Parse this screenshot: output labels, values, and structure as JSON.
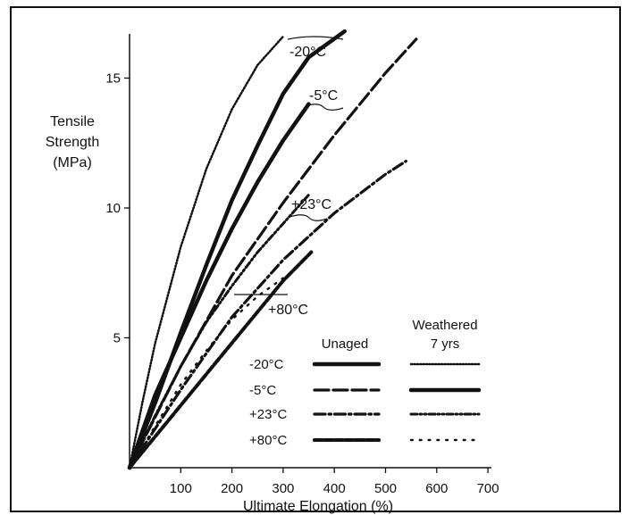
{
  "chart_data": {
    "type": "line",
    "xlabel": "Ultimate Elongation (%)",
    "ylabel_lines": [
      "Tensile",
      "Strength",
      "(MPa)"
    ],
    "xlim": [
      0,
      700
    ],
    "ylim": [
      0,
      17
    ],
    "xticks": [
      100,
      200,
      300,
      400,
      500,
      600,
      700
    ],
    "yticks": [
      5,
      10,
      15
    ],
    "grid": false,
    "legend_headers": {
      "unaged": "Unaged",
      "weathered_line1": "Weathered",
      "weathered_line2": "7 yrs"
    },
    "legend_rows": [
      "-20°C",
      "-5°C",
      "+23°C",
      "+80°C"
    ],
    "annotations": [
      {
        "text": "-20°C",
        "x": 350,
        "y": 16.5
      },
      {
        "text": "-5°C",
        "x": 340,
        "y": 14.3
      },
      {
        "text": "+23°C",
        "x": 355,
        "y": 9.5
      },
      {
        "text": "+80°C",
        "x": 330,
        "y": 6.0
      }
    ],
    "series": [
      {
        "temperature": "-20°C",
        "condition": "Unaged",
        "style": "solid",
        "points": [
          [
            0,
            0
          ],
          [
            50,
            2.5
          ],
          [
            100,
            5.2
          ],
          [
            150,
            7.8
          ],
          [
            200,
            10.3
          ],
          [
            250,
            12.4
          ],
          [
            300,
            14.4
          ],
          [
            350,
            15.8
          ],
          [
            420,
            16.8
          ]
        ]
      },
      {
        "temperature": "-20°C",
        "condition": "Weathered 7 yrs",
        "style": "dotted",
        "points": [
          [
            0,
            0
          ],
          [
            25,
            2.5
          ],
          [
            50,
            4.8
          ],
          [
            100,
            8.5
          ],
          [
            150,
            11.5
          ],
          [
            200,
            13.8
          ],
          [
            250,
            15.5
          ],
          [
            300,
            16.6
          ]
        ]
      },
      {
        "temperature": "-5°C",
        "condition": "Unaged",
        "style": "longdash",
        "points": [
          [
            0,
            0
          ],
          [
            100,
            3.9
          ],
          [
            200,
            7.4
          ],
          [
            300,
            10.2
          ],
          [
            400,
            12.8
          ],
          [
            500,
            15.2
          ],
          [
            560,
            16.5
          ]
        ]
      },
      {
        "temperature": "-5°C",
        "condition": "Weathered 7 yrs",
        "style": "solid",
        "points": [
          [
            0,
            0
          ],
          [
            50,
            2.8
          ],
          [
            100,
            5.0
          ],
          [
            150,
            7.2
          ],
          [
            200,
            9.2
          ],
          [
            250,
            11.0
          ],
          [
            300,
            12.6
          ],
          [
            350,
            14.0
          ]
        ]
      },
      {
        "temperature": "+23°C",
        "condition": "Unaged",
        "style": "dashdot",
        "points": [
          [
            0,
            0
          ],
          [
            100,
            3.0
          ],
          [
            200,
            5.8
          ],
          [
            300,
            8.0
          ],
          [
            400,
            9.8
          ],
          [
            500,
            11.3
          ],
          [
            540,
            11.8
          ]
        ]
      },
      {
        "temperature": "+23°C",
        "condition": "Weathered 7 yrs",
        "style": "dashdotdot",
        "points": [
          [
            0,
            0
          ],
          [
            50,
            2.0
          ],
          [
            100,
            3.9
          ],
          [
            150,
            5.6
          ],
          [
            200,
            7.0
          ],
          [
            250,
            8.3
          ],
          [
            300,
            9.4
          ],
          [
            350,
            10.5
          ]
        ]
      },
      {
        "temperature": "+80°C",
        "condition": "Unaged",
        "style": "dashed",
        "points": [
          [
            0,
            0
          ],
          [
            50,
            1.2
          ],
          [
            100,
            2.4
          ],
          [
            150,
            3.6
          ],
          [
            200,
            4.8
          ],
          [
            250,
            6.0
          ],
          [
            300,
            7.2
          ],
          [
            355,
            8.3
          ]
        ]
      },
      {
        "temperature": "+80°C",
        "condition": "Weathered 7 yrs",
        "style": "sparse-dotted",
        "points": [
          [
            0,
            0
          ],
          [
            50,
            1.6
          ],
          [
            100,
            3.2
          ],
          [
            150,
            4.5
          ],
          [
            200,
            5.7
          ],
          [
            250,
            6.6
          ],
          [
            300,
            7.3
          ]
        ]
      }
    ]
  }
}
